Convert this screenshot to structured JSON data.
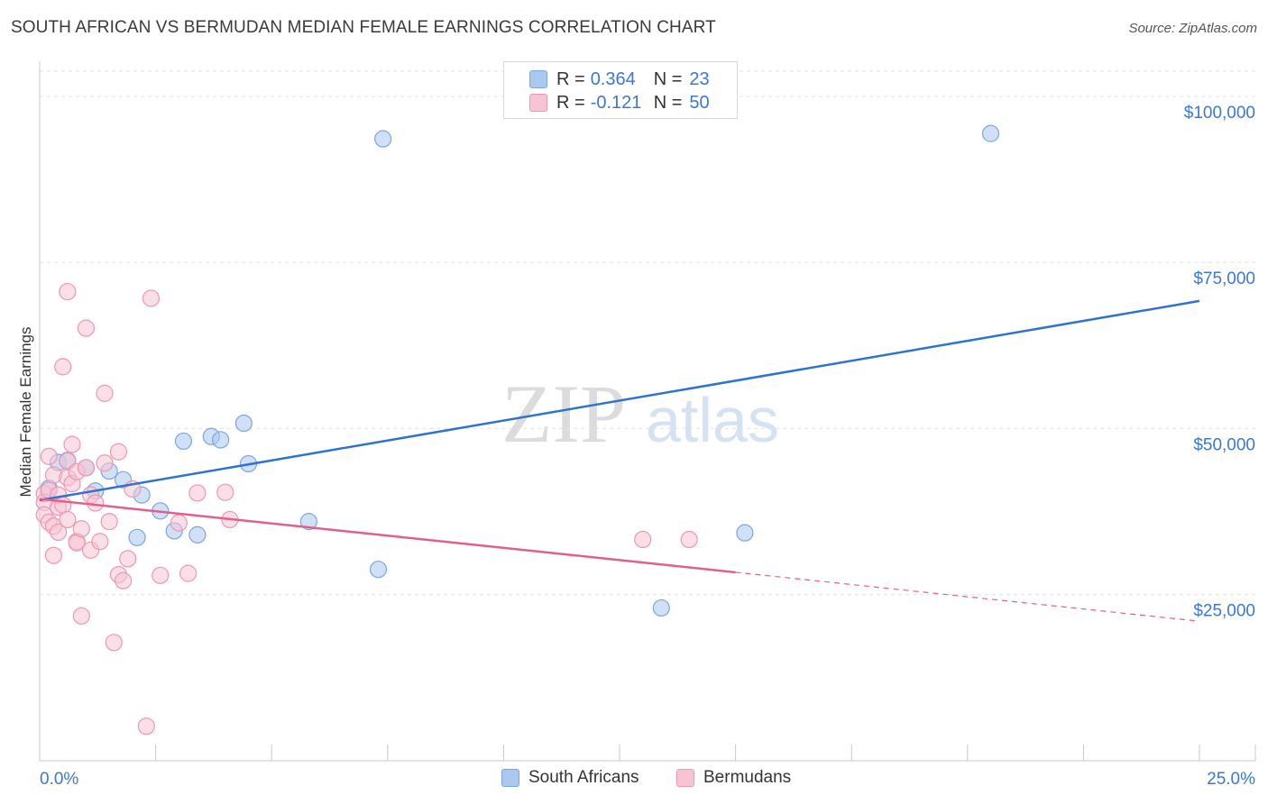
{
  "header": {
    "title": "SOUTH AFRICAN VS BERMUDAN MEDIAN FEMALE EARNINGS CORRELATION CHART",
    "source": "Source: ZipAtlas.com"
  },
  "watermark": {
    "zip": "ZIP",
    "atlas": "atlas"
  },
  "legend": {
    "r_label": "R =",
    "n_label": "N =",
    "rows": [
      {
        "r": "0.364",
        "n": "23",
        "color": "#aac8f0",
        "border": "#7aa6e0"
      },
      {
        "r": "-0.121",
        "n": "50",
        "color": "#f8c4d4",
        "border": "#ee96b2"
      }
    ]
  },
  "bottom_legend": {
    "items": [
      {
        "label": "South Africans",
        "color": "#aac8f0",
        "border": "#7aa6e0"
      },
      {
        "label": "Bermudans",
        "color": "#f8c4d4",
        "border": "#ee96b2"
      }
    ]
  },
  "chart_data": {
    "type": "scatter",
    "title": "SOUTH AFRICAN VS BERMUDAN MEDIAN FEMALE EARNINGS CORRELATION CHART",
    "xlabel": "",
    "ylabel": "Median Female Earnings",
    "xlim": [
      0,
      25
    ],
    "ylim": [
      0,
      105000
    ],
    "x_tick_labels": [
      "0.0%",
      "25.0%"
    ],
    "y_ticks": [
      25000,
      50000,
      75000,
      100000
    ],
    "y_tick_labels": [
      "$25,000",
      "$50,000",
      "$75,000",
      "$100,000"
    ],
    "grid": true,
    "legend_position": "top-center",
    "series": [
      {
        "name": "South Africans",
        "color": "#7aa6e0",
        "fill": "#aac8f0",
        "line_color": "#2f72d0",
        "trend": {
          "x0": 0,
          "y0": 39200,
          "x1": 25,
          "y1": 69200,
          "dashed_from": null
        },
        "points": [
          [
            0.2,
            41000
          ],
          [
            0.4,
            44900
          ],
          [
            0.6,
            45200
          ],
          [
            1.0,
            44100
          ],
          [
            1.2,
            40600
          ],
          [
            1.5,
            43600
          ],
          [
            1.8,
            42300
          ],
          [
            2.2,
            40000
          ],
          [
            2.1,
            33600
          ],
          [
            2.6,
            37600
          ],
          [
            2.9,
            34600
          ],
          [
            3.1,
            48100
          ],
          [
            3.4,
            34000
          ],
          [
            3.7,
            48800
          ],
          [
            3.9,
            48300
          ],
          [
            4.4,
            50800
          ],
          [
            4.5,
            44700
          ],
          [
            5.8,
            36000
          ],
          [
            7.3,
            28800
          ],
          [
            7.4,
            93600
          ],
          [
            13.4,
            23000
          ],
          [
            15.2,
            34300
          ],
          [
            20.5,
            94400
          ]
        ]
      },
      {
        "name": "Bermudans",
        "color": "#ee96b2",
        "fill": "#f8c4d4",
        "line_color": "#e0608a",
        "trend": {
          "x0": 0,
          "y0": 39400,
          "x1": 25,
          "y1": 21000,
          "dashed_from": 15
        },
        "points": [
          [
            0.1,
            40200
          ],
          [
            0.1,
            38900
          ],
          [
            0.1,
            37000
          ],
          [
            0.2,
            35900
          ],
          [
            0.2,
            40700
          ],
          [
            0.2,
            45800
          ],
          [
            0.3,
            30900
          ],
          [
            0.3,
            43000
          ],
          [
            0.3,
            35300
          ],
          [
            0.4,
            38200
          ],
          [
            0.4,
            40000
          ],
          [
            0.4,
            34400
          ],
          [
            0.5,
            59300
          ],
          [
            0.5,
            38500
          ],
          [
            0.6,
            45100
          ],
          [
            0.6,
            36300
          ],
          [
            0.6,
            42600
          ],
          [
            0.6,
            70600
          ],
          [
            0.7,
            47600
          ],
          [
            0.7,
            41700
          ],
          [
            0.8,
            33000
          ],
          [
            0.8,
            43500
          ],
          [
            0.8,
            32800
          ],
          [
            0.9,
            34900
          ],
          [
            0.9,
            21800
          ],
          [
            1.0,
            44100
          ],
          [
            1.0,
            65100
          ],
          [
            1.1,
            31700
          ],
          [
            1.1,
            40000
          ],
          [
            1.2,
            38800
          ],
          [
            1.3,
            33000
          ],
          [
            1.4,
            55300
          ],
          [
            1.4,
            44800
          ],
          [
            1.5,
            36000
          ],
          [
            1.6,
            17800
          ],
          [
            1.7,
            46500
          ],
          [
            1.7,
            28000
          ],
          [
            1.8,
            27100
          ],
          [
            1.9,
            30400
          ],
          [
            2.0,
            40900
          ],
          [
            2.3,
            5200
          ],
          [
            2.4,
            69600
          ],
          [
            2.6,
            27900
          ],
          [
            3.0,
            35800
          ],
          [
            3.2,
            28200
          ],
          [
            3.4,
            40300
          ],
          [
            4.0,
            40400
          ],
          [
            4.1,
            36300
          ],
          [
            13.0,
            33300
          ],
          [
            14.0,
            33300
          ]
        ]
      }
    ]
  }
}
